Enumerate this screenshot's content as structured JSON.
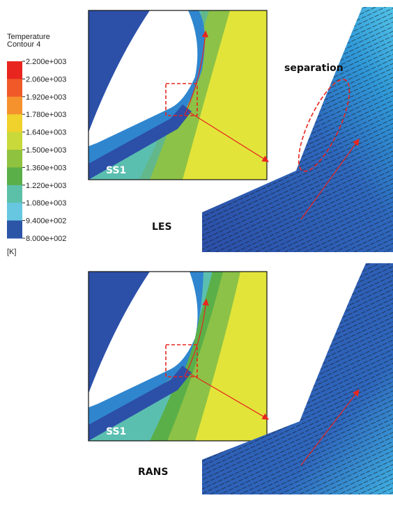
{
  "legend": {
    "title": "Temperature",
    "subtitle": "Contour 4",
    "ticks": [
      "2.200e+003",
      "2.060e+003",
      "1.920e+003",
      "1.780e+003",
      "1.640e+003",
      "1.500e+003",
      "1.360e+003",
      "1.220e+003",
      "1.080e+003",
      "9.400e+002",
      "8.000e+002"
    ],
    "unit": "[K]"
  },
  "panels": [
    {
      "label": "LES",
      "inset_label": "SS1",
      "annotation": "separation"
    },
    {
      "label": "RANS",
      "inset_label": "SS1"
    }
  ]
}
